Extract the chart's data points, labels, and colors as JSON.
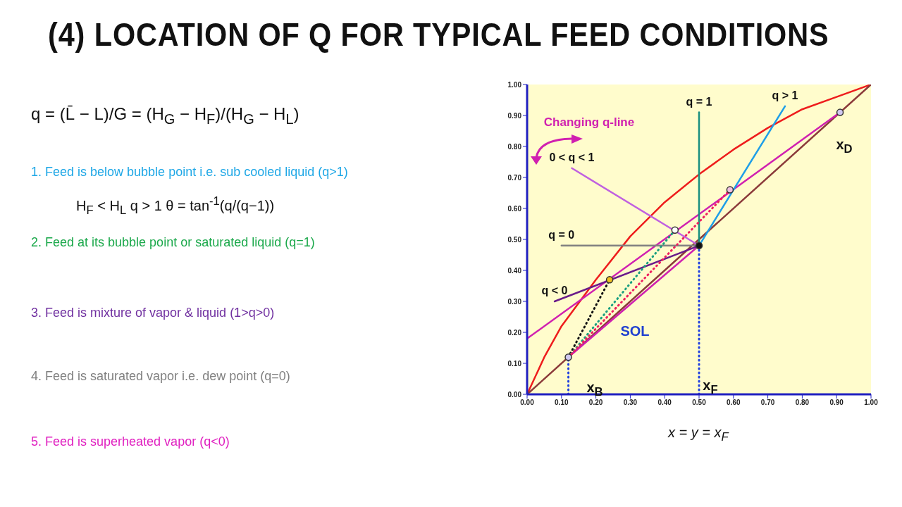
{
  "chart_data": {
    "type": "line",
    "title": "(4) LOCATION OF Q FOR TYPICAL FEED CONDITIONS",
    "xlim": [
      0,
      1
    ],
    "ylim": [
      0,
      1
    ],
    "xticks": [
      {
        "value": 0,
        "label": "0.00"
      },
      {
        "value": 0.1,
        "label": "0.10"
      },
      {
        "value": 0.2,
        "label": "0.20"
      },
      {
        "value": 0.3,
        "label": "0.30"
      },
      {
        "value": 0.4,
        "label": "0.40"
      },
      {
        "value": 0.5,
        "label": "0.50"
      },
      {
        "value": 0.6,
        "label": "0.60"
      },
      {
        "value": 0.7,
        "label": "0.70"
      },
      {
        "value": 0.8,
        "label": "0.80"
      },
      {
        "value": 0.9,
        "label": "0.90"
      },
      {
        "value": 1,
        "label": "1.00"
      }
    ],
    "yticks": [
      {
        "value": 0,
        "label": "0.00"
      },
      {
        "value": 0.1,
        "label": "0.10"
      },
      {
        "value": 0.2,
        "label": "0.20"
      },
      {
        "value": 0.3,
        "label": "0.30"
      },
      {
        "value": 0.4,
        "label": "0.40"
      },
      {
        "value": 0.5,
        "label": "0.50"
      },
      {
        "value": 0.6,
        "label": "0.60"
      },
      {
        "value": 0.7,
        "label": "0.70"
      },
      {
        "value": 0.8,
        "label": "0.80"
      },
      {
        "value": 0.9,
        "label": "0.90"
      },
      {
        "value": 1,
        "label": "1.00"
      }
    ],
    "grid": false,
    "legend": false,
    "marker": "none",
    "series": [
      {
        "color": "#ee1c1c",
        "x": [
          0,
          0.05,
          0.1,
          0.2,
          0.3,
          0.4,
          0.5,
          0.6,
          0.7,
          0.8,
          0.9,
          1
        ],
        "values": [
          0,
          0.12,
          0.22,
          0.37,
          0.51,
          0.62,
          0.71,
          0.79,
          0.86,
          0.92,
          0.96,
          1
        ]
      },
      {
        "color": "#8b3a3a",
        "x": [
          0,
          1
        ],
        "values": [
          0,
          1
        ]
      },
      {
        "color": "#d020b0",
        "x": [
          0,
          0.91
        ],
        "values": [
          0.18,
          0.91
        ]
      },
      {
        "color": "#d020b0",
        "x": [
          0.12,
          0.5
        ],
        "values": [
          0.12,
          0.48
        ]
      },
      {
        "name": "q = 1",
        "color": "#1a8f80",
        "x": [
          0.5,
          0.5
        ],
        "values": [
          0.48,
          0.91
        ]
      },
      {
        "name": "q > 1",
        "color": "#1e9ee8",
        "x": [
          0.5,
          0.75
        ],
        "values": [
          0.48,
          0.93
        ]
      },
      {
        "name": "q = 0",
        "color": "#808080",
        "x": [
          0.5,
          0.1
        ],
        "values": [
          0.48,
          0.48
        ]
      },
      {
        "name": "0 < q < 1",
        "color": "#c060e0",
        "x": [
          0.5,
          0.13
        ],
        "values": [
          0.48,
          0.73
        ]
      },
      {
        "name": "q < 0",
        "color": "#6a1b8a",
        "x": [
          0.5,
          0.08
        ],
        "values": [
          0.48,
          0.3
        ]
      },
      {
        "color": "#111111",
        "line_style": "dotted",
        "x": [
          0.12,
          0.24
        ],
        "values": [
          0.12,
          0.37
        ]
      },
      {
        "color": "#1a9f80",
        "line_style": "dotted",
        "x": [
          0.12,
          0.43
        ],
        "values": [
          0.12,
          0.53
        ]
      },
      {
        "color": "#ee2060",
        "line_style": "dotted",
        "x": [
          0.12,
          0.59
        ],
        "values": [
          0.12,
          0.66
        ]
      },
      {
        "color": "#2040e0",
        "line_style": "dotted",
        "x": [
          0.12,
          0.12
        ],
        "values": [
          0,
          0.12
        ]
      },
      {
        "color": "#2040e0",
        "line_style": "dotted",
        "x": [
          0.5,
          0.5
        ],
        "values": [
          0,
          0.48
        ]
      },
      {
        "type": "scatter",
        "marker": "circle",
        "x": [
          0.91,
          0.12,
          0.5,
          0.43,
          0.24,
          0.59
        ],
        "values": [
          0.91,
          0.12,
          0.48,
          0.53,
          0.37,
          0.66
        ],
        "colors": [
          "#d0c8f0",
          "#d0c8f0",
          "#111111",
          "#ffffff",
          "#f0c020",
          "#f0c0e0"
        ]
      }
    ],
    "annotations": [
      "q = (L̄ − L)/G = (H$_{G}$ − H$_{F}$)/(H$_{G}$ − H$_{L}$)",
      "1. Feed is below bubble point i.e. sub cooled liquid (q>1)",
      "H$_{F}$ < H$_{L}$     q > 1     θ = tan$^{-1}$(q/(q−1))",
      "2. Feed at its bubble point or saturated liquid (q=1)",
      "3. Feed is mixture of vapor & liquid (1>q>0)",
      "4. Feed is saturated vapor i.e. dew point (q=0)",
      "5. Feed is superheated vapor (q<0)",
      "x = y = x$_{F}$",
      "Changing q-line",
      "SOL",
      "x$_{D}$",
      "x$_{B}$",
      "x$_{F}$"
    ]
  }
}
